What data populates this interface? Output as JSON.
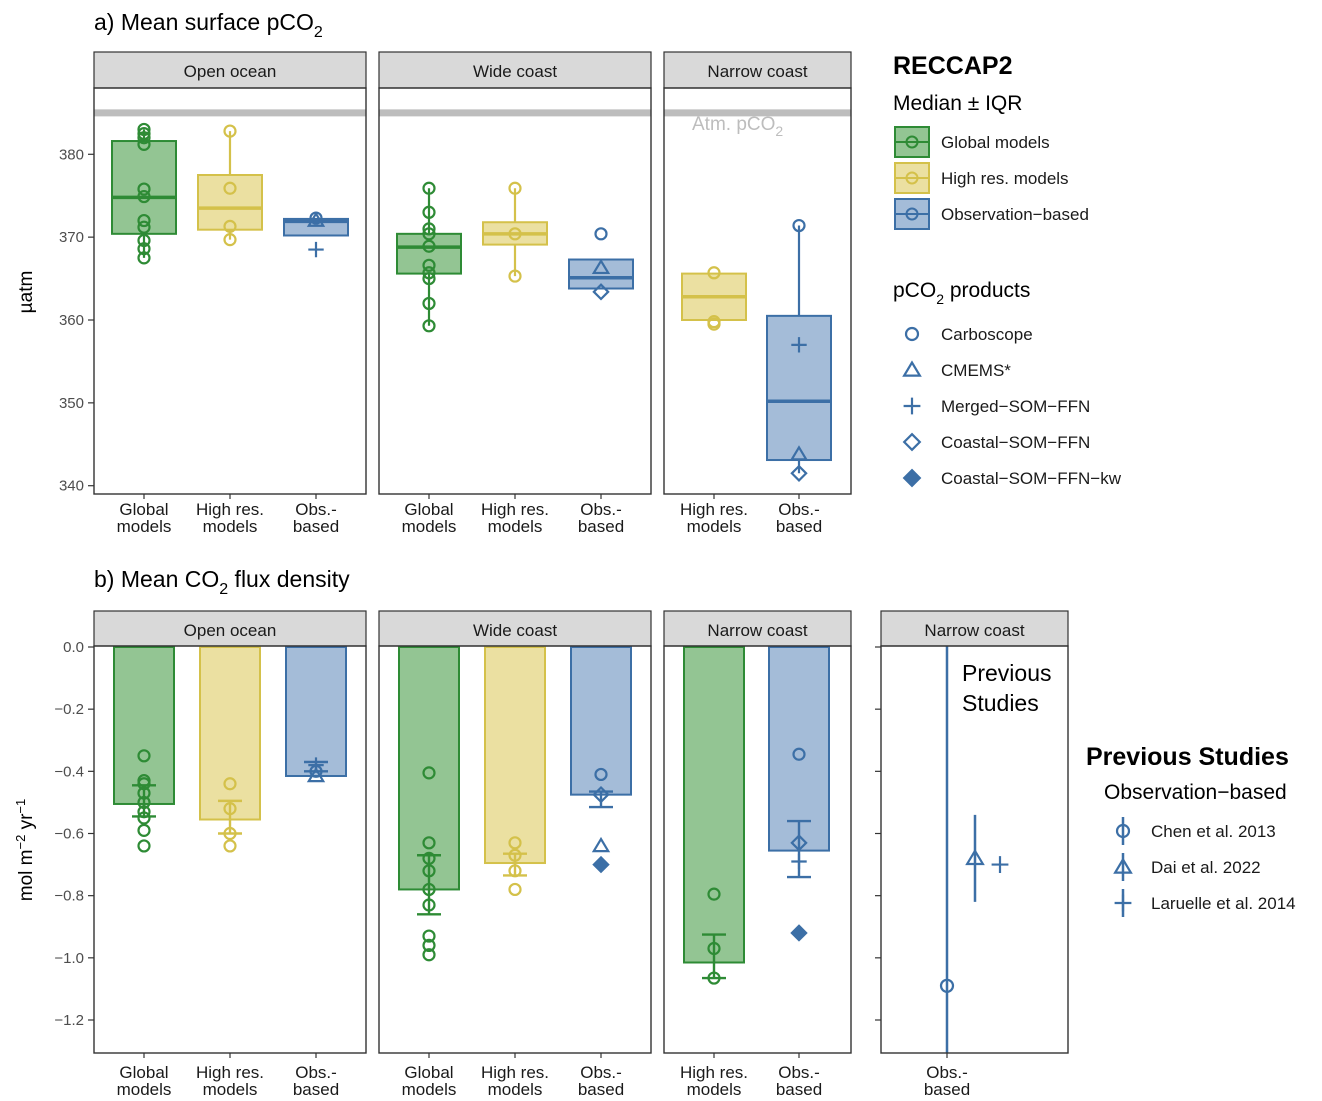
{
  "figure": {
    "panel_a_title": "a) Mean surface pCO",
    "panel_a_title_sub": "2",
    "panel_b_title_pre": "b) Mean CO",
    "panel_b_title_sub": "2",
    "panel_b_title_post": " flux density",
    "atm_label": "Atm. pCO",
    "atm_label_sub": "2",
    "previous_studies_label_line1": "Previous",
    "previous_studies_label_line2": "Studies"
  },
  "colors": {
    "global": "#2e8b35",
    "global_fill": "#93c593",
    "highres": "#d4c14a",
    "highres_fill": "#ebe0a1",
    "obs": "#3c6fa6",
    "obs_fill": "#a4bcd8",
    "atm_line": "#bdbdbd",
    "strip": "#d9d9d9"
  },
  "legend": {
    "title": "RECCAP2",
    "subtitle": "Median ± IQR",
    "groups": [
      {
        "key": "global",
        "label": "Global models"
      },
      {
        "key": "highres",
        "label": "High res. models"
      },
      {
        "key": "obs",
        "label": "Observation−based"
      }
    ],
    "products_title": "pCO",
    "products_title_sub": "2",
    "products_title_post": " products",
    "products": [
      {
        "shape": "circle",
        "label": "Carboscope"
      },
      {
        "shape": "triangle",
        "label": "CMEMS*"
      },
      {
        "shape": "plus",
        "label": "Merged−SOM−FFN"
      },
      {
        "shape": "diamond",
        "label": "Coastal−SOM−FFN"
      },
      {
        "shape": "diamond-filled",
        "label": "Coastal−SOM−FFN−kw"
      }
    ],
    "prev_title": "Previous Studies",
    "prev_subtitle": "Observation−based",
    "prev_items": [
      {
        "shape": "circle",
        "label": "Chen et al. 2013"
      },
      {
        "shape": "triangle",
        "label": "Dai et al. 2022"
      },
      {
        "shape": "plus",
        "label": "Laruelle et al. 2014"
      }
    ]
  },
  "chart_data": [
    {
      "type": "box",
      "title": "a) Mean surface pCO2",
      "ylabel": "µatm",
      "ylim": [
        339,
        388
      ],
      "yticks": [
        340,
        350,
        360,
        370,
        380
      ],
      "atm_pco2": 385,
      "facets": [
        {
          "name": "Open ocean",
          "categories": [
            {
              "key": "global",
              "label": [
                "Global",
                "models"
              ],
              "q1": 370.4,
              "median": 374.8,
              "q3": 381.6,
              "whisker": [
                367.5,
                383
              ],
              "points": [
                {
                  "shape": "circle",
                  "values": [
                    383.0,
                    382.5,
                    382.0,
                    381.2,
                    375.8,
                    374.9,
                    372.0,
                    371.2,
                    369.6,
                    368.6,
                    367.5
                  ]
                }
              ]
            },
            {
              "key": "highres",
              "label": [
                "High res.",
                "models"
              ],
              "q1": 370.9,
              "median": 373.5,
              "q3": 377.5,
              "whisker": [
                369.7,
                382.8
              ],
              "points": [
                {
                  "shape": "circle",
                  "values": [
                    382.8,
                    375.9,
                    371.3,
                    369.7
                  ]
                }
              ]
            },
            {
              "key": "obs",
              "label": [
                "Obs.-",
                "based"
              ],
              "q1": 370.2,
              "median": 371.9,
              "q3": 372.2,
              "whisker": null,
              "points": [
                {
                  "shape": "circle",
                  "values": [
                    372.3
                  ]
                },
                {
                  "shape": "triangle",
                  "values": [
                    372.0
                  ]
                },
                {
                  "shape": "plus",
                  "values": [
                    368.5
                  ]
                }
              ]
            }
          ]
        },
        {
          "name": "Wide coast",
          "categories": [
            {
              "key": "global",
              "label": [
                "Global",
                "models"
              ],
              "q1": 365.6,
              "median": 368.8,
              "q3": 370.4,
              "whisker": [
                359.3,
                375.9
              ],
              "points": [
                {
                  "shape": "circle",
                  "values": [
                    375.9,
                    373.0,
                    371.0,
                    370.4,
                    368.9,
                    366.6,
                    365.7,
                    365.0,
                    362.0,
                    359.3
                  ]
                }
              ]
            },
            {
              "key": "highres",
              "label": [
                "High res.",
                "models"
              ],
              "q1": 369.1,
              "median": 370.4,
              "q3": 371.8,
              "whisker": [
                365.3,
                375.9
              ],
              "points": [
                {
                  "shape": "circle",
                  "values": [
                    375.9,
                    370.4,
                    365.3
                  ]
                }
              ]
            },
            {
              "key": "obs",
              "label": [
                "Obs.-",
                "based"
              ],
              "q1": 363.8,
              "median": 365.1,
              "q3": 367.3,
              "whisker": null,
              "points": [
                {
                  "shape": "circle",
                  "values": [
                    370.4
                  ]
                },
                {
                  "shape": "triangle",
                  "values": [
                    366.3
                  ]
                },
                {
                  "shape": "diamond",
                  "values": [
                    363.4
                  ]
                }
              ]
            }
          ]
        },
        {
          "name": "Narrow coast",
          "categories": [
            {
              "key": "highres",
              "label": [
                "High res.",
                "models"
              ],
              "q1": 360.0,
              "median": 362.8,
              "q3": 365.6,
              "whisker": null,
              "points": [
                {
                  "shape": "circle",
                  "values": [
                    365.7,
                    359.8,
                    359.5
                  ]
                }
              ]
            },
            {
              "key": "obs",
              "label": [
                "Obs.-",
                "based"
              ],
              "q1": 343.1,
              "median": 350.2,
              "q3": 360.5,
              "whisker": [
                341.5,
                371.4
              ],
              "points": [
                {
                  "shape": "circle",
                  "values": [
                    371.4
                  ]
                },
                {
                  "shape": "plus",
                  "values": [
                    357.0
                  ]
                },
                {
                  "shape": "triangle",
                  "values": [
                    343.8
                  ]
                },
                {
                  "shape": "diamond",
                  "values": [
                    341.5
                  ]
                }
              ]
            }
          ]
        }
      ]
    },
    {
      "type": "bar",
      "title": "b) Mean CO2 flux density",
      "ylabel": "mol m−2 yr−1",
      "ylim": [
        -1.31,
        0.12
      ],
      "yticks": [
        0.0,
        -0.2,
        -0.4,
        -0.6,
        -0.8,
        -1.0,
        -1.2
      ],
      "ytick_labels": [
        "0.0",
        "−0.2",
        "−0.4",
        "−0.6",
        "−0.8",
        "−1.0",
        "−1.2"
      ],
      "facets": [
        {
          "name": "Open ocean",
          "categories": [
            {
              "key": "global",
              "label": [
                "Global",
                "models"
              ],
              "value": -0.505,
              "errorbar": [
                -0.545,
                -0.445
              ],
              "points": [
                {
                  "shape": "circle",
                  "values": [
                    -0.35,
                    -0.43,
                    -0.44,
                    -0.47,
                    -0.5,
                    -0.53,
                    -0.55,
                    -0.59,
                    -0.64
                  ]
                }
              ]
            },
            {
              "key": "highres",
              "label": [
                "High res.",
                "models"
              ],
              "value": -0.555,
              "errorbar": [
                -0.6,
                -0.495
              ],
              "points": [
                {
                  "shape": "circle",
                  "values": [
                    -0.44,
                    -0.52,
                    -0.6,
                    -0.64
                  ]
                }
              ]
            },
            {
              "key": "obs",
              "label": [
                "Obs.-",
                "based"
              ],
              "value": -0.415,
              "errorbar": [
                -0.4,
                -0.37
              ],
              "points": [
                {
                  "shape": "circle",
                  "values": [
                    -0.4
                  ]
                },
                {
                  "shape": "triangle",
                  "values": [
                    -0.415
                  ]
                },
                {
                  "shape": "plus",
                  "values": [
                    -0.38
                  ]
                }
              ]
            }
          ]
        },
        {
          "name": "Wide coast",
          "categories": [
            {
              "key": "global",
              "label": [
                "Global",
                "models"
              ],
              "value": -0.78,
              "errorbar": [
                -0.86,
                -0.67
              ],
              "points": [
                {
                  "shape": "circle",
                  "values": [
                    -0.405,
                    -0.63,
                    -0.68,
                    -0.72,
                    -0.78,
                    -0.83,
                    -0.93,
                    -0.96,
                    -0.99
                  ]
                }
              ]
            },
            {
              "key": "highres",
              "label": [
                "High res.",
                "models"
              ],
              "value": -0.695,
              "errorbar": [
                -0.735,
                -0.665
              ],
              "points": [
                {
                  "shape": "circle",
                  "values": [
                    -0.63,
                    -0.67,
                    -0.72,
                    -0.78
                  ]
                }
              ]
            },
            {
              "key": "obs",
              "label": [
                "Obs.-",
                "based"
              ],
              "value": -0.475,
              "errorbar": [
                -0.515,
                -0.465
              ],
              "points": [
                {
                  "shape": "circle",
                  "values": [
                    -0.41
                  ]
                },
                {
                  "shape": "diamond",
                  "values": [
                    -0.475
                  ]
                },
                {
                  "shape": "triangle",
                  "values": [
                    -0.64
                  ]
                },
                {
                  "shape": "diamond-filled",
                  "values": [
                    -0.7
                  ]
                }
              ]
            }
          ]
        },
        {
          "name": "Narrow coast",
          "categories": [
            {
              "key": "highres",
              "label": [
                "High res.",
                "models"
              ],
              "value": -1.015,
              "errorbar": [
                -1.065,
                -0.925
              ],
              "points": [
                {
                  "shape": "circle",
                  "values": [
                    -0.795,
                    -0.97,
                    -1.065
                  ]
                }
              ],
              "style": "global"
            },
            {
              "key": "obs",
              "label": [
                "Obs.-",
                "based"
              ],
              "value": -0.655,
              "errorbar": [
                -0.74,
                -0.56
              ],
              "points": [
                {
                  "shape": "circle",
                  "values": [
                    -0.345
                  ]
                },
                {
                  "shape": "diamond",
                  "values": [
                    -0.63
                  ]
                },
                {
                  "shape": "plus",
                  "values": [
                    -0.69
                  ]
                },
                {
                  "shape": "diamond-filled",
                  "values": [
                    -0.92
                  ]
                }
              ]
            }
          ]
        },
        {
          "name": "Narrow coast",
          "previous_studies": true,
          "categories": [
            {
              "key": "obs",
              "label": [
                "Obs.-",
                "based"
              ],
              "points": [
                {
                  "shape": "circle",
                  "value": -1.09,
                  "range": [
                    -1.31,
                    0.12
                  ]
                },
                {
                  "shape": "triangle",
                  "value": -0.68,
                  "range": [
                    -0.82,
                    -0.54
                  ]
                },
                {
                  "shape": "plus",
                  "value": -0.7,
                  "range": null
                }
              ]
            }
          ]
        }
      ]
    }
  ]
}
